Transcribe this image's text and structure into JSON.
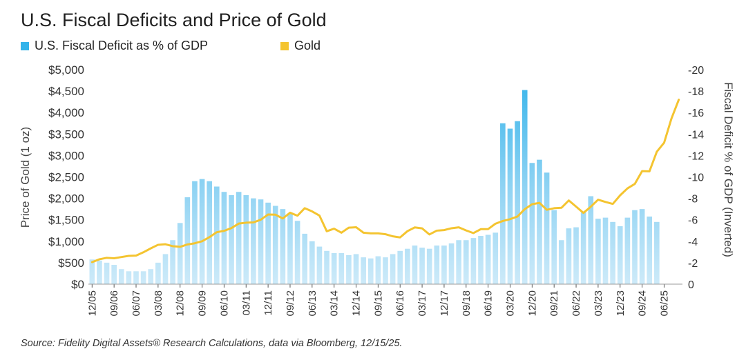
{
  "title": "U.S. Fiscal Deficits and Price of Gold",
  "source": "Source: Fidelity Digital Assets® Research Calculations, data via Bloomberg, 12/15/25.",
  "colors": {
    "deficit_dark": "#33b3ea",
    "deficit_light": "#cdeaf9",
    "gold": "#f4c430",
    "axis": "#555555"
  },
  "chart_data": {
    "type": "bar+line",
    "legend": [
      {
        "name": "U.S. Fiscal Deficit as % of GDP",
        "color": "#33b3ea",
        "marker": "square"
      },
      {
        "name": "Gold",
        "color": "#f4c430",
        "marker": "square"
      }
    ],
    "ylabel_left": "Price of Gold (1 oz)",
    "ylabel_right": "Fiscal Deficit % of GDP (Inverted)",
    "ylim_left": [
      0,
      5000
    ],
    "ylim_right": [
      0,
      -20
    ],
    "yticks_left": [
      "$0",
      "$500",
      "$1,000",
      "$1,500",
      "$2,000",
      "$2,500",
      "$3,000",
      "$3,500",
      "$4,000",
      "$4,500",
      "$5,000"
    ],
    "yticks_right": [
      "0",
      "-2",
      "-4",
      "-6",
      "-8",
      "-10",
      "-12",
      "-14",
      "-16",
      "-18",
      "-20"
    ],
    "xtick_labels": [
      "12/05",
      "09/06",
      "06/07",
      "03/08",
      "12/08",
      "09/09",
      "06/10",
      "03/11",
      "12/11",
      "09/12",
      "06/13",
      "03/14",
      "12/14",
      "09/15",
      "06/16",
      "03/17",
      "12/17",
      "09/18",
      "06/19",
      "03/20",
      "12/20",
      "09/21",
      "06/22",
      "03/23",
      "12/23",
      "09/24",
      "06/25"
    ],
    "series": [
      {
        "name": "U.S. Fiscal Deficit as % of GDP",
        "type": "bar",
        "axis": "right",
        "start": "12/05",
        "frequency": "quarterly",
        "values": [
          -2.3,
          -2.2,
          -2.0,
          -1.8,
          -1.4,
          -1.2,
          -1.2,
          -1.2,
          -1.4,
          -2.0,
          -2.8,
          -4.1,
          -5.7,
          -8.1,
          -9.6,
          -9.8,
          -9.6,
          -9.1,
          -8.6,
          -8.3,
          -8.6,
          -8.3,
          -8.0,
          -7.9,
          -7.6,
          -7.3,
          -7.0,
          -6.6,
          -5.9,
          -4.7,
          -4.0,
          -3.5,
          -3.1,
          -2.9,
          -2.9,
          -2.7,
          -2.8,
          -2.5,
          -2.4,
          -2.6,
          -2.5,
          -2.8,
          -3.1,
          -3.3,
          -3.6,
          -3.4,
          -3.3,
          -3.6,
          -3.6,
          -3.8,
          -4.1,
          -4.1,
          -4.3,
          -4.5,
          -4.6,
          -4.8,
          -15.0,
          -14.5,
          -15.2,
          -18.1,
          -11.3,
          -11.6,
          -10.4,
          -6.9,
          -4.1,
          -5.2,
          -5.3,
          -6.7,
          -8.2,
          -6.1,
          -6.2,
          -5.8,
          -5.4,
          -6.2,
          -6.9,
          -7.0,
          -6.3,
          -5.8
        ]
      },
      {
        "name": "Gold",
        "type": "line",
        "axis": "left",
        "start": "12/05",
        "frequency": "quarterly",
        "values": [
          513,
          580,
          614,
          603,
          632,
          659,
          665,
          743,
          834,
          917,
          930,
          885,
          870,
          925,
          953,
          1000,
          1096,
          1211,
          1242,
          1307,
          1412,
          1432,
          1439,
          1502,
          1624,
          1620,
          1531,
          1665,
          1595,
          1771,
          1696,
          1599,
          1233,
          1293,
          1199,
          1316,
          1327,
          1200,
          1183,
          1183,
          1164,
          1115,
          1089,
          1235,
          1322,
          1300,
          1158,
          1247,
          1260,
          1303,
          1325,
          1252,
          1190,
          1282,
          1283,
          1409,
          1472,
          1515,
          1577,
          1749,
          1863,
          1895,
          1733,
          1770,
          1780,
          1951,
          1807,
          1661,
          1805,
          1969,
          1917,
          1870,
          2070,
          2232,
          2336,
          2635,
          2629,
          3086,
          3297,
          3859,
          4300
        ]
      }
    ],
    "grid": false
  }
}
